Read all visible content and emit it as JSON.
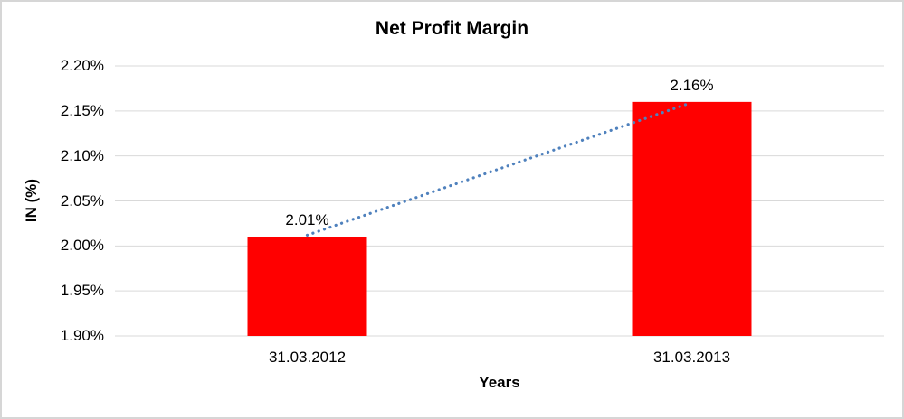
{
  "chart_data": {
    "type": "bar",
    "title": "Net Profit Margin",
    "xlabel": "Years",
    "ylabel": "IN (%)",
    "categories": [
      "31.03.2012",
      "31.03.2013"
    ],
    "values": [
      2.01,
      2.16
    ],
    "data_labels": [
      "2.01%",
      "2.16%"
    ],
    "ylim": [
      1.9,
      2.2
    ],
    "ytick_step": 0.05,
    "ytick_labels": [
      "1.90%",
      "1.95%",
      "2.00%",
      "2.05%",
      "2.10%",
      "2.15%",
      "2.20%"
    ],
    "grid": true,
    "legend_position": "none",
    "trendline": {
      "style": "dotted",
      "from_value": 2.01,
      "to_value": 2.16
    },
    "colors": {
      "bar": "#FF0000",
      "trendline": "#4F81BD",
      "gridline": "#D9D9D9",
      "text": "#000000",
      "canvas_border": "#D6D6D6"
    }
  }
}
